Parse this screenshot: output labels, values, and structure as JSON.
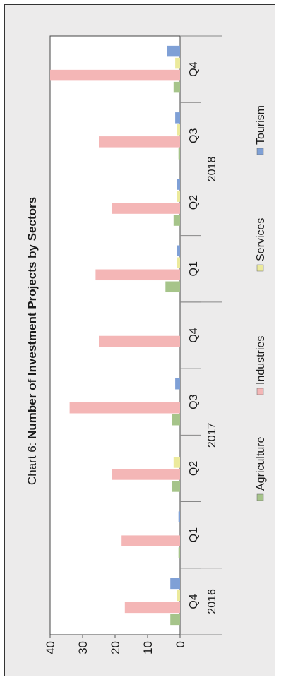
{
  "chart_data": {
    "type": "bar",
    "title_prefix": "Chart 6: ",
    "title_bold": "Number of Investment Projects by Sectors",
    "orientation": "rotated-90-ccw",
    "categories": [
      "Q4",
      "Q1",
      "Q2",
      "Q3",
      "Q4",
      "Q1",
      "Q2",
      "Q3",
      "Q4"
    ],
    "groups": [
      {
        "label": "2016",
        "count": 1
      },
      {
        "label": "2017",
        "count": 4
      },
      {
        "label": "2018",
        "count": 4
      }
    ],
    "series": [
      {
        "name": "Agriculture",
        "color": "#a6c48a",
        "values": [
          3,
          0.5,
          2.5,
          2.5,
          0,
          4.5,
          2,
          0.5,
          2
        ]
      },
      {
        "name": "Industries",
        "color": "#f4b6b6",
        "values": [
          17,
          18,
          21,
          34,
          25,
          26,
          21,
          25,
          40
        ]
      },
      {
        "name": "Services",
        "color": "#ecea9c",
        "values": [
          1,
          0,
          2,
          0,
          0,
          1,
          1,
          1,
          1.5
        ]
      },
      {
        "name": "Tourism",
        "color": "#7fa0d6",
        "values": [
          3,
          0.5,
          0,
          1.5,
          0,
          1,
          1,
          1.5,
          4
        ]
      }
    ],
    "ylim": [
      0,
      40
    ],
    "yticks": [
      0,
      10,
      20,
      30,
      40
    ],
    "grid": false,
    "legend": "bottom"
  }
}
